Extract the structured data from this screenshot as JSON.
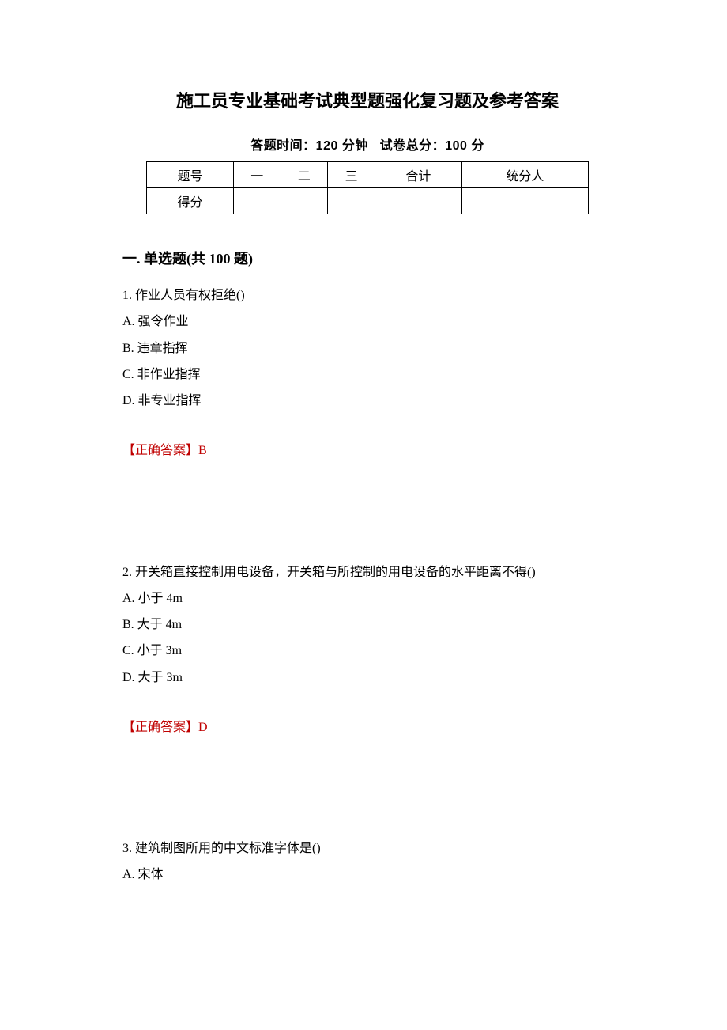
{
  "title": "施工员专业基础考试典型题强化复习题及参考答案",
  "subtitle_time_label": "答题时间：",
  "subtitle_time_value": "120 分钟",
  "subtitle_score_label": "试卷总分：",
  "subtitle_score_value": "100 分",
  "score_table": {
    "header_cells": [
      "题号",
      "一",
      "二",
      "三",
      "合计",
      "统分人"
    ],
    "row2_first": "得分"
  },
  "section_title": "一. 单选题(共 100 题)",
  "questions": [
    {
      "num": "1.",
      "text": "作业人员有权拒绝()",
      "options": [
        "A. 强令作业",
        "B. 违章指挥",
        "C. 非作业指挥",
        "D. 非专业指挥"
      ],
      "answer_label": "【正确答案】",
      "answer_value": "B"
    },
    {
      "num": "2.",
      "text": "开关箱直接控制用电设备，开关箱与所控制的用电设备的水平距离不得()",
      "options": [
        "A. 小于 4m",
        "B. 大于 4m",
        "C. 小于 3m",
        "D. 大于 3m"
      ],
      "answer_label": "【正确答案】",
      "answer_value": "D"
    },
    {
      "num": "3.",
      "text": "建筑制图所用的中文标准字体是()",
      "options": [
        "A. 宋体"
      ],
      "answer_label": "",
      "answer_value": ""
    }
  ],
  "colors": {
    "text": "#000000",
    "answer": "#c00000",
    "border": "#000000",
    "background": "#ffffff"
  },
  "typography": {
    "title_fontsize": 22,
    "subtitle_fontsize": 16,
    "body_fontsize": 16,
    "section_fontsize": 18
  }
}
